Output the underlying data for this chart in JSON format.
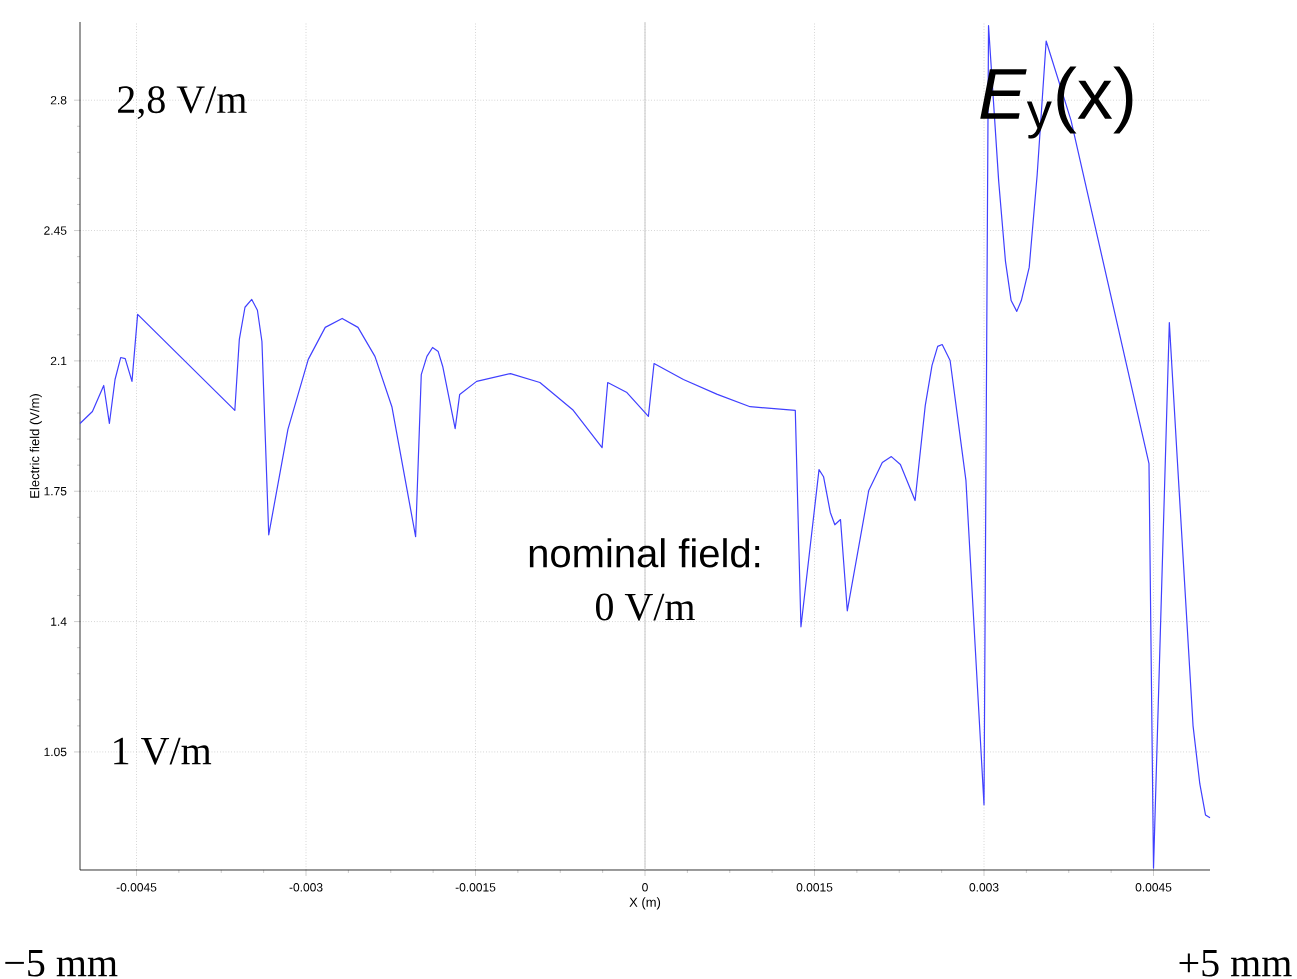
{
  "chart_data": {
    "type": "line",
    "title": "*E*$_{y}$(x)",
    "xlabel": "X (m)",
    "ylabel": "Electric field (V/m)",
    "color": "#4040ff",
    "grid": true,
    "xlim": [
      -0.005,
      0.005
    ],
    "ylim": [
      0.733,
      3.01
    ],
    "xticks": [
      -0.0045,
      -0.003,
      -0.0015,
      0,
      0.0015,
      0.003,
      0.0045
    ],
    "yticks": [
      1.05,
      1.4,
      1.75,
      2.1,
      2.45,
      2.8
    ],
    "ref_lines": [
      {
        "axis": "x",
        "value": 0,
        "color": "#c8c8c8"
      }
    ],
    "annotations": [
      "2,8 V/m",
      "1 V/m",
      "nominal field:",
      "0 V/m",
      "−5 mm",
      "+5 mm"
    ],
    "x": [
      -0.005,
      -0.00489,
      -0.00479,
      -0.00474,
      -0.00469,
      -0.00464,
      -0.0046,
      -0.00454,
      -0.00449,
      -0.00363,
      -0.00359,
      -0.00354,
      -0.00348,
      -0.00343,
      -0.00339,
      -0.00333,
      -0.00316,
      -0.00298,
      -0.00283,
      -0.00268,
      -0.00254,
      -0.00239,
      -0.00224,
      -0.00203,
      -0.00198,
      -0.00193,
      -0.00188,
      -0.00183,
      -0.00179,
      -0.00168,
      -0.00164,
      -0.00149,
      -0.00119,
      -0.00093,
      -0.00064,
      -0.00038,
      -0.00033,
      -0.00016,
      3e-05,
      8e-05,
      0.00034,
      0.00064,
      0.00093,
      0.00133,
      0.00138,
      0.00154,
      0.00158,
      0.00164,
      0.00168,
      0.00173,
      0.00179,
      0.00198,
      0.0021,
      0.00218,
      0.00226,
      0.00239,
      0.00248,
      0.00254,
      0.00259,
      0.00263,
      0.0027,
      0.00284,
      0.003,
      0.00304,
      0.00313,
      0.00319,
      0.00324,
      0.00329,
      0.00333,
      0.0034,
      0.00347,
      0.00355,
      0.00377,
      0.00446,
      0.0045,
      0.00464,
      0.00471,
      0.00485,
      0.00491,
      0.00496,
      0.005
    ],
    "values": [
      1.932,
      1.964,
      2.034,
      1.932,
      2.05,
      2.109,
      2.106,
      2.045,
      2.225,
      1.967,
      2.158,
      2.244,
      2.265,
      2.236,
      2.152,
      1.633,
      1.916,
      2.104,
      2.19,
      2.214,
      2.19,
      2.112,
      1.977,
      1.628,
      2.063,
      2.112,
      2.136,
      2.125,
      2.085,
      1.918,
      2.01,
      2.045,
      2.066,
      2.042,
      1.969,
      1.867,
      2.042,
      2.015,
      1.951,
      2.093,
      2.05,
      2.01,
      1.977,
      1.967,
      1.386,
      1.808,
      1.789,
      1.693,
      1.66,
      1.674,
      1.429,
      1.752,
      1.827,
      1.843,
      1.822,
      1.725,
      1.98,
      2.088,
      2.139,
      2.144,
      2.101,
      1.779,
      0.908,
      3.0,
      2.582,
      2.367,
      2.262,
      2.233,
      2.262,
      2.351,
      2.598,
      2.959,
      2.746,
      1.824,
      0.738,
      2.203,
      1.838,
      1.12,
      0.964,
      0.881,
      0.873
    ]
  }
}
